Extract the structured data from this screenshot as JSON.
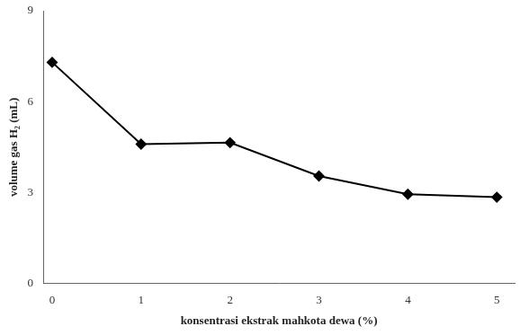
{
  "chart_data": {
    "type": "line",
    "x": [
      0,
      1,
      2,
      3,
      4,
      5
    ],
    "values": [
      7.3,
      4.6,
      4.65,
      3.55,
      2.95,
      2.85
    ],
    "xlabel": "konsentrasi ekstrak mahkota dewa (%)",
    "ylabel": "volume gas H₂ (mL)",
    "xlim": [
      -0.1,
      5.2
    ],
    "ylim": [
      0,
      9
    ],
    "xticks": [
      0,
      1,
      2,
      3,
      4,
      5
    ],
    "yticks": [
      0,
      3,
      6,
      9
    ],
    "color": "#000000",
    "marker": "diamond",
    "grid": false
  }
}
